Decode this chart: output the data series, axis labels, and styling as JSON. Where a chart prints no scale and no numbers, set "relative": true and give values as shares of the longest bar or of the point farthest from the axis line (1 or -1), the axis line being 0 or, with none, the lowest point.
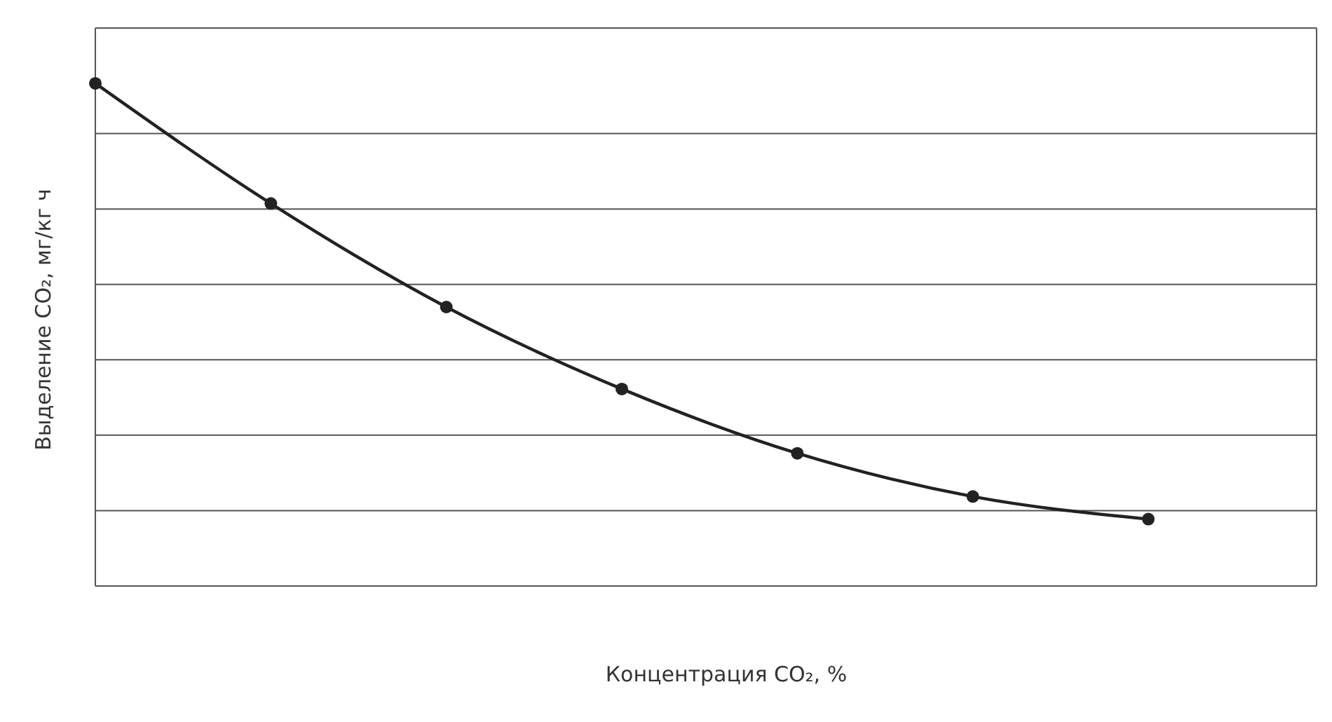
{
  "chart_data": {
    "type": "line",
    "xlabel": "Концентрация CO₂, %",
    "ylabel": "Выделение CO₂, мг/кг ч",
    "relative": true,
    "categories": [
      null,
      null,
      null,
      null,
      null,
      null,
      null
    ],
    "series": [
      {
        "color": "#222222",
        "values": [
          1,
          0.761,
          0.555,
          0.392,
          0.264,
          0.178,
          0.133
        ]
      }
    ],
    "grid": true,
    "tick_labels": false,
    "marker": "circle",
    "line_style": "solid",
    "legend": false
  }
}
